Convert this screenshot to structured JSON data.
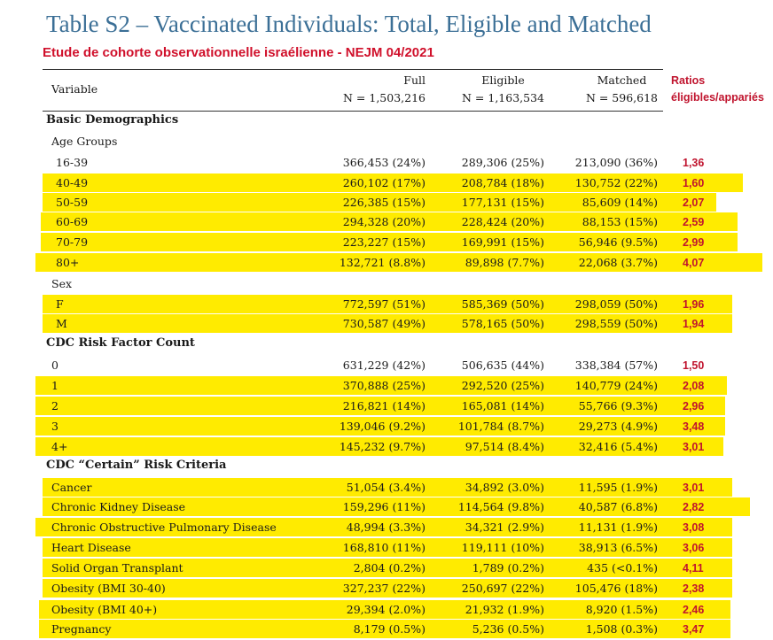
{
  "title": "Table S2 – Vaccinated Individuals: Total, Eligible and Matched",
  "subtitle": "Etude de cohorte observationnelle israélienne - NEJM 04/2021",
  "header": {
    "variable": "Variable",
    "full_label": "Full",
    "full_n": "N = 1,503,216",
    "eligible_label": "Eligible",
    "eligible_n": "N = 1,163,534",
    "matched_label": "Matched",
    "matched_n": "N = 596,618",
    "ratio_line1": "Ratios",
    "ratio_line2": "éligibles/appariés"
  },
  "sections": {
    "basic": "Basic Demographics",
    "age_groups": "Age Groups",
    "sex": "Sex",
    "cdc_count": "CDC Risk Factor Count",
    "cdc_certain": "CDC “Certain” Risk Criteria"
  },
  "highlight_color": "#ffeb00",
  "ratio_color": "#c0142e",
  "rows": [
    {
      "label": "16-39",
      "full": "366,453 (24%)",
      "eligible": "289,306 (25%)",
      "matched": "213,090 (36%)",
      "ratio": "1,36"
    },
    {
      "label": "40-49",
      "full": "260,102 (17%)",
      "eligible": "208,784 (18%)",
      "matched": "130,752 (22%)",
      "ratio": "1,60"
    },
    {
      "label": "50-59",
      "full": "226,385 (15%)",
      "eligible": "177,131 (15%)",
      "matched": "85,609 (14%)",
      "ratio": "2,07"
    },
    {
      "label": "60-69",
      "full": "294,328 (20%)",
      "eligible": "228,424 (20%)",
      "matched": "88,153 (15%)",
      "ratio": "2,59"
    },
    {
      "label": "70-79",
      "full": "223,227 (15%)",
      "eligible": "169,991 (15%)",
      "matched": "56,946 (9.5%)",
      "ratio": "2,99"
    },
    {
      "label": "80+",
      "full": "132,721 (8.8%)",
      "eligible": "89,898 (7.7%)",
      "matched": "22,068 (3.7%)",
      "ratio": "4,07"
    },
    {
      "label": "F",
      "full": "772,597 (51%)",
      "eligible": "585,369 (50%)",
      "matched": "298,059 (50%)",
      "ratio": "1,96"
    },
    {
      "label": "M",
      "full": "730,587 (49%)",
      "eligible": "578,165 (50%)",
      "matched": "298,559 (50%)",
      "ratio": "1,94"
    },
    {
      "label": "0",
      "full": "631,229 (42%)",
      "eligible": "506,635 (44%)",
      "matched": "338,384 (57%)",
      "ratio": "1,50"
    },
    {
      "label": "1",
      "full": "370,888 (25%)",
      "eligible": "292,520 (25%)",
      "matched": "140,779 (24%)",
      "ratio": "2,08"
    },
    {
      "label": "2",
      "full": "216,821 (14%)",
      "eligible": "165,081 (14%)",
      "matched": "55,766 (9.3%)",
      "ratio": "2,96"
    },
    {
      "label": "3",
      "full": "139,046 (9.2%)",
      "eligible": "101,784 (8.7%)",
      "matched": "29,273 (4.9%)",
      "ratio": "3,48"
    },
    {
      "label": "4+",
      "full": "145,232 (9.7%)",
      "eligible": "97,514 (8.4%)",
      "matched": "32,416 (5.4%)",
      "ratio": "3,01"
    },
    {
      "label": "Cancer",
      "full": "51,054 (3.4%)",
      "eligible": "34,892 (3.0%)",
      "matched": "11,595 (1.9%)",
      "ratio": "3,01"
    },
    {
      "label": "Chronic Kidney Disease",
      "full": "159,296 (11%)",
      "eligible": "114,564 (9.8%)",
      "matched": "40,587 (6.8%)",
      "ratio": "2,82"
    },
    {
      "label": "Chronic Obstructive Pulmonary Disease",
      "full": "48,994 (3.3%)",
      "eligible": "34,321 (2.9%)",
      "matched": "11,131 (1.9%)",
      "ratio": "3,08"
    },
    {
      "label": "Heart Disease",
      "full": "168,810 (11%)",
      "eligible": "119,111 (10%)",
      "matched": "38,913 (6.5%)",
      "ratio": "3,06"
    },
    {
      "label": "Solid Organ Transplant",
      "full": "2,804 (0.2%)",
      "eligible": "1,789 (0.2%)",
      "matched": "435 (<0.1%)",
      "ratio": "4,11"
    },
    {
      "label": "Obesity (BMI 30-40)",
      "full": "327,237 (22%)",
      "eligible": "250,697 (22%)",
      "matched": "105,476 (18%)",
      "ratio": "2,38"
    },
    {
      "label": "Obesity (BMI 40+)",
      "full": "29,394 (2.0%)",
      "eligible": "21,932 (1.9%)",
      "matched": "8,920 (1.5%)",
      "ratio": "2,46"
    },
    {
      "label": "Pregnancy",
      "full": "8,179 (0.5%)",
      "eligible": "5,236 (0.5%)",
      "matched": "1,508 (0.3%)",
      "ratio": "3,47"
    }
  ]
}
